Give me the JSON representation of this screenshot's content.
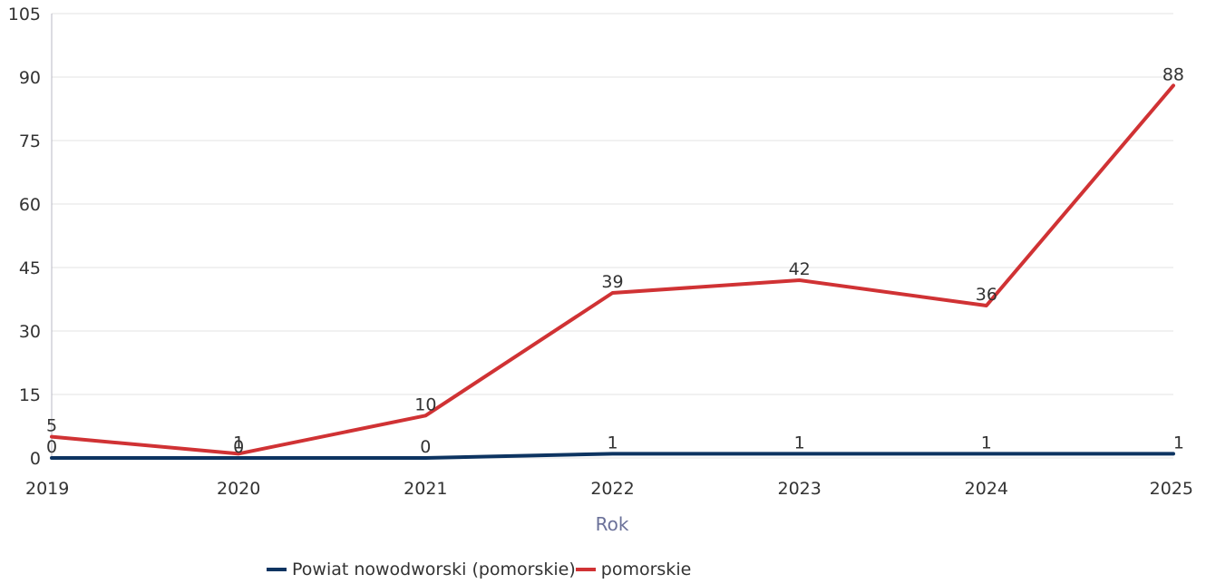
{
  "chart_data": {
    "type": "line",
    "xlabel": "Rok",
    "ylabel": "",
    "categories": [
      "2019",
      "2020",
      "2021",
      "2022",
      "2023",
      "2024",
      "2025"
    ],
    "ylim": [
      0,
      105
    ],
    "yticks": [
      0,
      15,
      30,
      45,
      60,
      75,
      90,
      105
    ],
    "grid": true,
    "legend_position": "bottom",
    "series": [
      {
        "name": "Powiat nowodworski (pomorskie)",
        "color": "#0d3461",
        "values": [
          0,
          0,
          0,
          1,
          1,
          1,
          1
        ]
      },
      {
        "name": "pomorskie",
        "color": "#d03234",
        "values": [
          5,
          1,
          10,
          39,
          42,
          36,
          88
        ]
      }
    ]
  }
}
